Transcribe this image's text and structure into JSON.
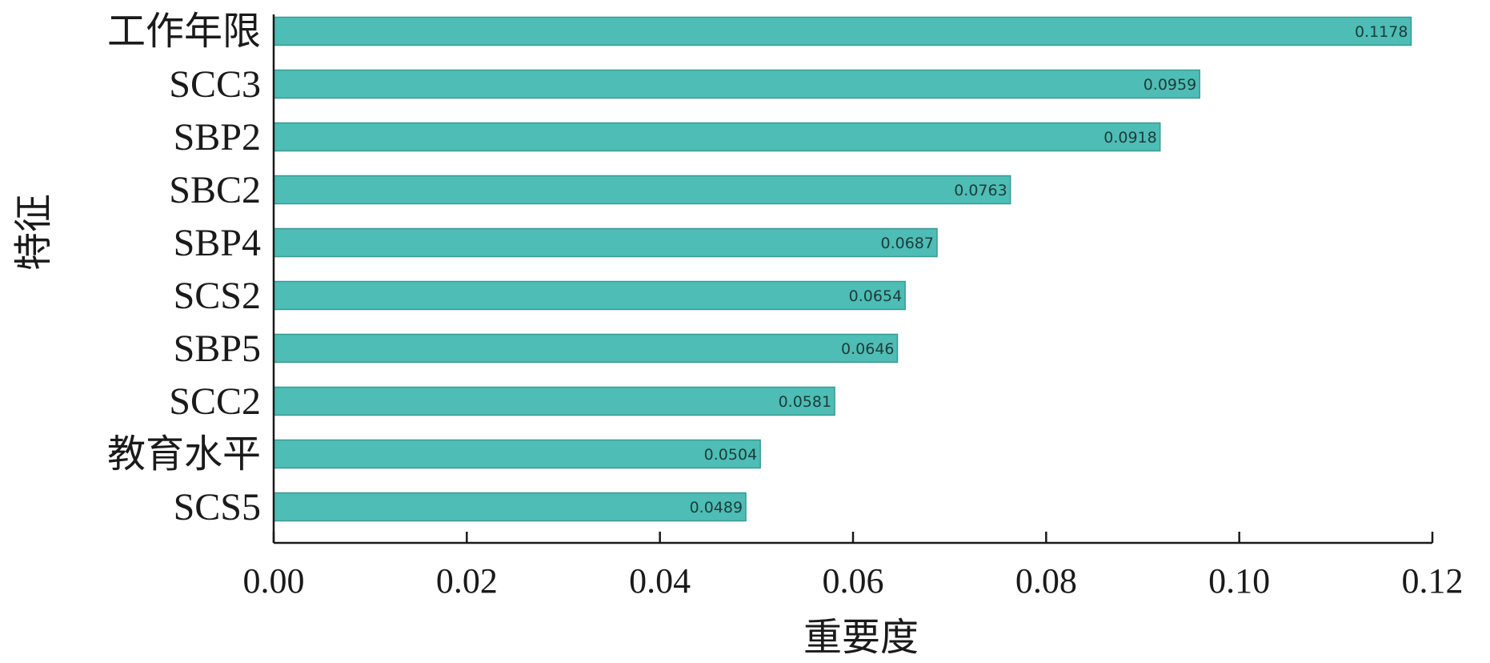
{
  "chart_data": {
    "type": "bar",
    "orientation": "horizontal",
    "categories": [
      "工作年限",
      "SCC3",
      "SBP2",
      "SBC2",
      "SBP4",
      "SCS2",
      "SBP5",
      "SCC2",
      "教育水平",
      "SCS5"
    ],
    "values": [
      0.1178,
      0.0959,
      0.0918,
      0.0763,
      0.0687,
      0.0654,
      0.0646,
      0.0581,
      0.0504,
      0.0489
    ],
    "value_labels": [
      "0.1178",
      "0.0959",
      "0.0918",
      "0.0763",
      "0.0687",
      "0.0654",
      "0.0646",
      "0.0581",
      "0.0504",
      "0.0489"
    ],
    "xlabel": "重要度",
    "ylabel": "特征",
    "xlim": [
      0,
      0.12
    ],
    "xticks": [
      0.0,
      0.02,
      0.04,
      0.06,
      0.08,
      0.1,
      0.12
    ],
    "xtick_labels": [
      "0.00",
      "0.02",
      "0.04",
      "0.06",
      "0.08",
      "0.10",
      "0.12"
    ],
    "bar_color": "#4dbdb5",
    "bar_edge_color": "#3a9a93",
    "grid": false,
    "legend": "none"
  }
}
